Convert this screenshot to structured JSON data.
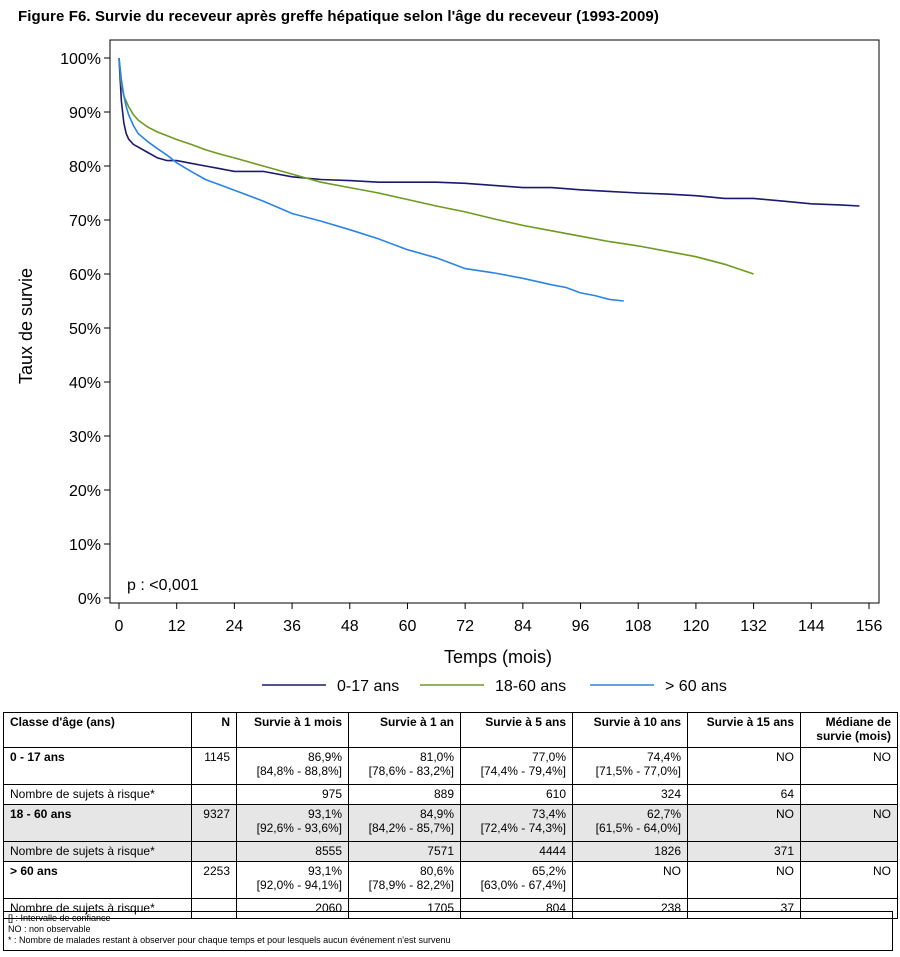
{
  "figure_title": "Figure F6. Survie du receveur après greffe hépatique selon l'âge du receveur (1993-2009)",
  "chart_data": {
    "type": "line",
    "title": "Figure F6. Survie du receveur après greffe hépatique selon l'âge du receveur (1993-2009)",
    "xlabel": "Temps (mois)",
    "ylabel": "Taux de survie",
    "xlim": [
      0,
      156
    ],
    "ylim": [
      0,
      100
    ],
    "x_ticks": [
      "0",
      "12",
      "24",
      "36",
      "48",
      "60",
      "72",
      "84",
      "96",
      "108",
      "120",
      "132",
      "144",
      "156"
    ],
    "y_ticks": [
      "0%",
      "10%",
      "20%",
      "30%",
      "40%",
      "50%",
      "60%",
      "70%",
      "80%",
      "90%",
      "100%"
    ],
    "annotation": "p : <0,001",
    "legend_position": "bottom",
    "grid": false,
    "series": [
      {
        "name": "0-17 ans",
        "color": "#1a1a6e",
        "x": [
          0,
          0.5,
          1,
          1.5,
          2,
          3,
          4,
          6,
          8,
          10,
          12,
          15,
          18,
          21,
          24,
          30,
          36,
          42,
          48,
          54,
          60,
          66,
          72,
          78,
          84,
          90,
          96,
          102,
          108,
          114,
          120,
          126,
          132,
          138,
          144,
          150,
          154
        ],
        "y": [
          100,
          92,
          88,
          86,
          85,
          84,
          83.5,
          82.5,
          81.5,
          81,
          81,
          80.5,
          80,
          79.5,
          79,
          79,
          78,
          77.5,
          77.3,
          77,
          77,
          77,
          76.8,
          76.4,
          76,
          76,
          75.6,
          75.3,
          75,
          74.8,
          74.5,
          74,
          74,
          73.5,
          73,
          72.8,
          72.6
        ]
      },
      {
        "name": "18-60 ans",
        "color": "#6e9a1e",
        "x": [
          0,
          0.5,
          1,
          1.5,
          2,
          3,
          4,
          6,
          8,
          10,
          12,
          15,
          18,
          21,
          24,
          30,
          36,
          42,
          48,
          54,
          60,
          66,
          72,
          78,
          84,
          90,
          96,
          102,
          108,
          114,
          120,
          126,
          132
        ],
        "y": [
          100,
          95,
          93,
          92,
          91,
          89.5,
          88.5,
          87.2,
          86.3,
          85.6,
          84.9,
          84,
          83,
          82.2,
          81.5,
          80,
          78.5,
          77,
          76,
          75,
          73.8,
          72.6,
          71.5,
          70.2,
          69,
          68,
          67,
          66,
          65.2,
          64.2,
          63.2,
          61.8,
          60
        ]
      },
      {
        "name": "> 60 ans",
        "color": "#2a84e6",
        "x": [
          0,
          0.5,
          1,
          1.5,
          2,
          3,
          4,
          6,
          8,
          10,
          12,
          15,
          18,
          21,
          24,
          30,
          36,
          42,
          48,
          54,
          60,
          66,
          72,
          78,
          84,
          90,
          93,
          96,
          99,
          102,
          105
        ],
        "y": [
          100,
          96,
          93.1,
          91,
          89.5,
          87.5,
          86,
          84.5,
          83.2,
          82,
          80.6,
          79,
          77.5,
          76.5,
          75.5,
          73.5,
          71.2,
          69.8,
          68.2,
          66.5,
          64.5,
          63,
          61,
          60.2,
          59.2,
          58,
          57.5,
          56.5,
          56,
          55.3,
          55
        ]
      }
    ]
  },
  "table": {
    "headers": [
      "Classe d'âge (ans)",
      "N",
      "Survie à 1 mois",
      "Survie à 1 an",
      "Survie à 5 ans",
      "Survie à 10 ans",
      "Survie à 15 ans",
      "Médiane de survie (mois)"
    ],
    "groups": [
      {
        "label": "0 - 17 ans",
        "n": "1145",
        "surv": [
          [
            "86,9%",
            "[84,8% - 88,8%]"
          ],
          [
            "81,0%",
            "[78,6% - 83,2%]"
          ],
          [
            "77,0%",
            "[74,4% - 79,4%]"
          ],
          [
            "74,4%",
            "[71,5% - 77,0%]"
          ],
          [
            "NO",
            ""
          ]
        ],
        "median": "NO",
        "risk_label": "Nombre de sujets à risque*",
        "risk": [
          "975",
          "889",
          "610",
          "324",
          "64"
        ]
      },
      {
        "label": "18 - 60 ans",
        "n": "9327",
        "surv": [
          [
            "93,1%",
            "[92,6% - 93,6%]"
          ],
          [
            "84,9%",
            "[84,2% - 85,7%]"
          ],
          [
            "73,4%",
            "[72,4% - 74,3%]"
          ],
          [
            "62,7%",
            "[61,5% - 64,0%]"
          ],
          [
            "NO",
            ""
          ]
        ],
        "median": "NO",
        "risk_label": "Nombre de sujets à risque*",
        "risk": [
          "8555",
          "7571",
          "4444",
          "1826",
          "371"
        ]
      },
      {
        "label": "> 60 ans",
        "n": "2253",
        "surv": [
          [
            "93,1%",
            "[92,0% - 94,1%]"
          ],
          [
            "80,6%",
            "[78,9% - 82,2%]"
          ],
          [
            "65,2%",
            "[63,0% - 67,4%]"
          ],
          [
            "NO",
            ""
          ],
          [
            "NO",
            ""
          ]
        ],
        "median": "NO",
        "risk_label": "Nombre de sujets à risque*",
        "risk": [
          "2060",
          "1705",
          "804",
          "238",
          "37"
        ]
      }
    ]
  },
  "notes": [
    "[] : Intervalle de confiance",
    "NO : non observable",
    "* : Nombre de malades restant à observer pour chaque temps et pour lesquels aucun événement n'est survenu"
  ]
}
